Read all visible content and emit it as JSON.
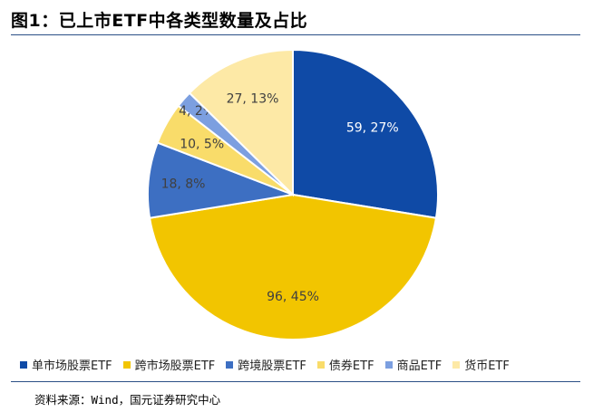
{
  "header": {
    "title": "图1：已上市ETF中各类型数量及占比"
  },
  "footer": {
    "source": "资料来源：Wind，国元证券研究中心"
  },
  "colors": {
    "rule": "#2b4f86",
    "label_dark_bg": "#ffffff",
    "label_light_bg": "#404040"
  },
  "chart_data": {
    "type": "pie",
    "title": "已上市ETF中各类型数量及占比",
    "start_angle_deg": 0,
    "direction": "clockwise",
    "legend_position": "bottom",
    "slices": [
      {
        "name": "单市场股票ETF",
        "value": 59,
        "percent": 27,
        "label": "59, 27%",
        "color": "#0f4aa6",
        "label_color": "#ffffff"
      },
      {
        "name": "跨市场股票ETF",
        "value": 96,
        "percent": 45,
        "label": "96, 45%",
        "color": "#f2c500",
        "label_color": "#404040"
      },
      {
        "name": "跨境股票ETF",
        "value": 18,
        "percent": 8,
        "label": "18, 8%",
        "color": "#3d6fc2",
        "label_color": "#404040"
      },
      {
        "name": "债券ETF",
        "value": 10,
        "percent": 5,
        "label": "10, 5%",
        "color": "#f9dc6a",
        "label_color": "#404040"
      },
      {
        "name": "商品ETF",
        "value": 4,
        "percent": 2,
        "label": "4, 2%",
        "color": "#7c9fe0",
        "label_color": "#404040"
      },
      {
        "name": "货币ETF",
        "value": 27,
        "percent": 13,
        "label": "27, 13%",
        "color": "#fde9a6",
        "label_color": "#404040"
      }
    ]
  }
}
